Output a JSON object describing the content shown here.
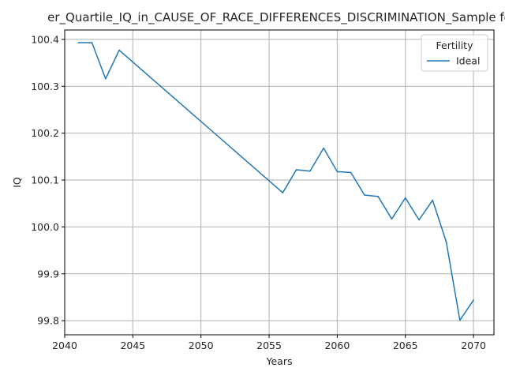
{
  "chart_data": {
    "type": "line",
    "title": "er_Quartile_IQ_in_CAUSE_OF_RACE_DIFFERENCES_DISCRIMINATION_Sample fo",
    "xlabel": "Years",
    "ylabel": "IQ",
    "xlim": [
      2040,
      2071.5
    ],
    "ylim": [
      99.77,
      100.42
    ],
    "xticks": [
      2040,
      2045,
      2050,
      2055,
      2060,
      2065,
      2070
    ],
    "yticks": [
      99.8,
      99.9,
      100.0,
      100.1,
      100.2,
      100.3,
      100.4
    ],
    "xtick_labels": [
      "2040",
      "2045",
      "2050",
      "2055",
      "2060",
      "2065",
      "2070"
    ],
    "ytick_labels": [
      "99.8",
      "99.9",
      "100.0",
      "100.1",
      "100.2",
      "100.3",
      "100.4"
    ],
    "grid": true,
    "legend": {
      "title": "Fertility",
      "placement": "top-right"
    },
    "series": [
      {
        "name": "Ideal",
        "color": "#1f77b4",
        "x": [
          2041,
          2042,
          2043,
          2044,
          2056,
          2057,
          2058,
          2059,
          2060,
          2061,
          2062,
          2063,
          2064,
          2065,
          2066,
          2067,
          2068,
          2069,
          2070
        ],
        "y": [
          100.393,
          100.393,
          100.316,
          100.377,
          100.073,
          100.122,
          100.119,
          100.168,
          100.118,
          100.116,
          100.068,
          100.065,
          100.017,
          100.062,
          100.015,
          100.057,
          99.968,
          99.801,
          99.844
        ]
      }
    ]
  }
}
